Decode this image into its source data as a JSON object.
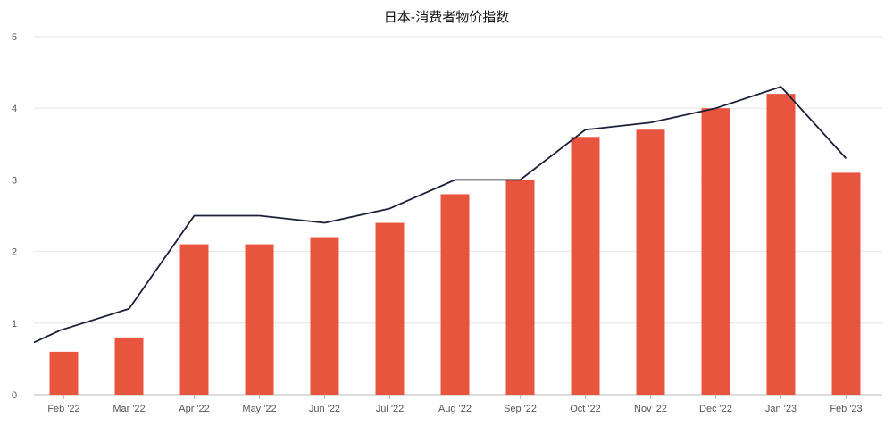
{
  "chart_data": {
    "type": "bar",
    "title": "日本-消费者物价指数",
    "xlabel": "",
    "ylabel": "",
    "ylim": [
      0,
      5
    ],
    "yticks": [
      "0",
      "1",
      "2",
      "3",
      "4",
      "5"
    ],
    "categories": [
      "Feb '22",
      "Mar '22",
      "Apr '22",
      "May '22",
      "Jun '22",
      "Jul '22",
      "Aug '22",
      "Sep '22",
      "Oct '22",
      "Nov '22",
      "Dec '22",
      "Jan '23",
      "Feb '23"
    ],
    "series": [
      {
        "type": "bar",
        "color": "#e8553e",
        "values": [
          0.6,
          0.8,
          2.1,
          2.1,
          2.2,
          2.4,
          2.8,
          3.0,
          3.6,
          3.7,
          4.0,
          4.2,
          3.1
        ]
      },
      {
        "type": "line",
        "color": "#1c1f3a",
        "values": [
          0.9,
          1.2,
          2.5,
          2.5,
          2.4,
          2.6,
          3.0,
          3.0,
          3.7,
          3.8,
          4.0,
          4.3,
          3.3
        ]
      }
    ],
    "line_start_value": 0.73,
    "grid": true,
    "legend": "none"
  }
}
